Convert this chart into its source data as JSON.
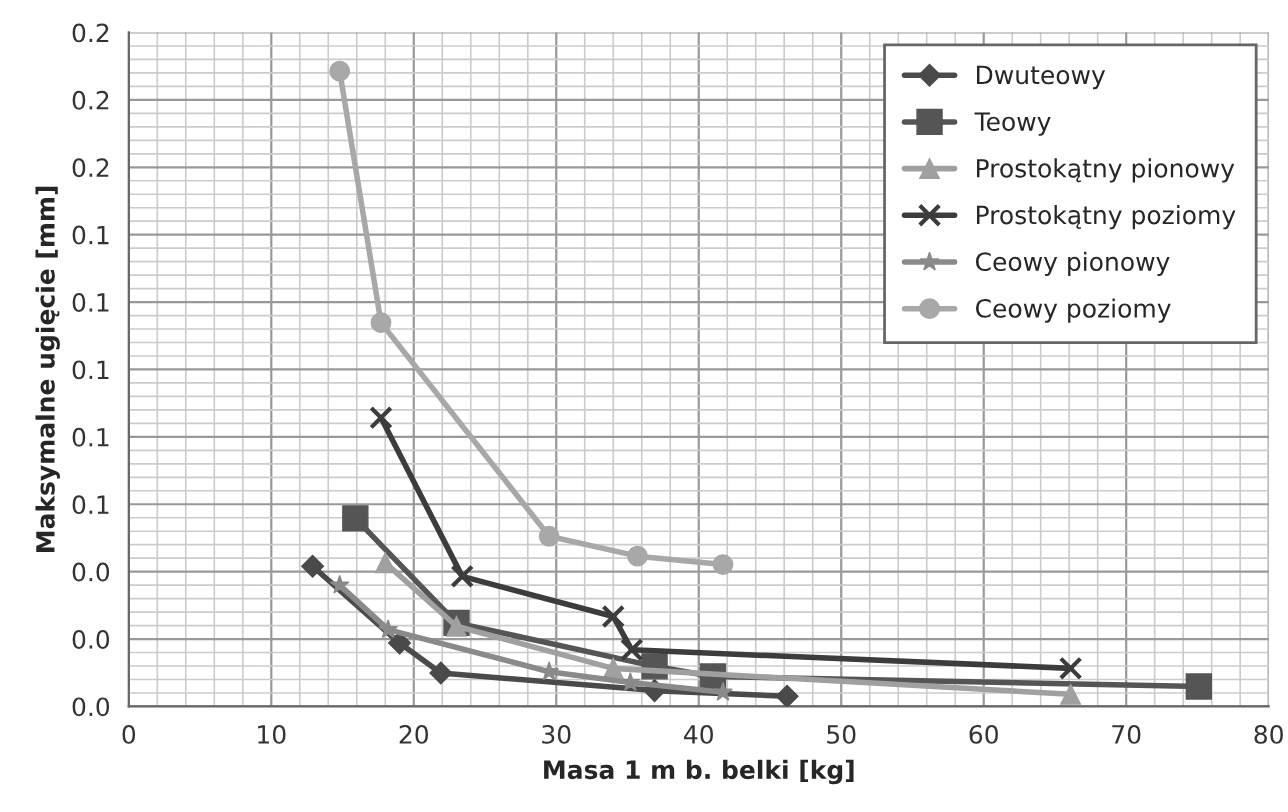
{
  "chart_data": {
    "type": "line",
    "xlabel": "Masa 1 m b. belki [kg]",
    "ylabel": "Maksymalne ugięcie [mm]",
    "xlim": [
      0,
      80
    ],
    "xticks": [
      0,
      10,
      20,
      30,
      40,
      50,
      60,
      70,
      80
    ],
    "ylim": [
      0,
      0.2
    ],
    "yticks": [
      {
        "value": 0,
        "label": "0.0"
      },
      {
        "value": 0.02,
        "label": "0.0"
      },
      {
        "value": 0.04,
        "label": "0.0"
      },
      {
        "value": 0.06,
        "label": "0.1"
      },
      {
        "value": 0.08,
        "label": "0.1"
      },
      {
        "value": 0.1,
        "label": "0.1"
      },
      {
        "value": 0.12,
        "label": "0.1"
      },
      {
        "value": 0.14,
        "label": "0.1"
      },
      {
        "value": 0.16,
        "label": "0.2"
      },
      {
        "value": 0.18,
        "label": "0.2"
      },
      {
        "value": 0.2,
        "label": "0.2"
      }
    ],
    "grid": true,
    "legend": "top right",
    "series": [
      {
        "name": "Dwuteowy",
        "color": "#4a4a4a",
        "marker": "diamond",
        "x": [
          12.9,
          19.0,
          21.9,
          36.9,
          46.2
        ],
        "values": [
          0.0416,
          0.0188,
          0.0099,
          0.0047,
          0.003
        ]
      },
      {
        "name": "Teowy",
        "color": "#555555",
        "marker": "square",
        "x": [
          15.9,
          23.0,
          36.9,
          41.0,
          75.1
        ],
        "values": [
          0.0558,
          0.0248,
          0.0119,
          0.0089,
          0.0059
        ]
      },
      {
        "name": "Prostokątny pionowy",
        "color": "#a0a0a0",
        "marker": "triangle",
        "x": [
          18.0,
          23.0,
          34.0,
          66.1
        ],
        "values": [
          0.0426,
          0.0238,
          0.0113,
          0.0036
        ]
      },
      {
        "name": "Prostokątny poziomy",
        "color": "#3c3c3c",
        "marker": "cross",
        "x": [
          17.7,
          23.4,
          34.0,
          35.3,
          66.1
        ],
        "values": [
          0.0857,
          0.0386,
          0.0267,
          0.0168,
          0.0113
        ]
      },
      {
        "name": "Ceowy pionowy",
        "color": "#8a8a8a",
        "marker": "star",
        "x": [
          14.8,
          18.2,
          29.5,
          35.2,
          41.7
        ],
        "values": [
          0.036,
          0.0228,
          0.0103,
          0.0071,
          0.0042
        ]
      },
      {
        "name": "Ceowy poziomy",
        "color": "#a8a8a8",
        "marker": "circle",
        "x": [
          14.8,
          17.7,
          29.5,
          35.7,
          41.7
        ],
        "values": [
          0.1885,
          0.1139,
          0.0505,
          0.0446,
          0.0421
        ]
      }
    ]
  }
}
